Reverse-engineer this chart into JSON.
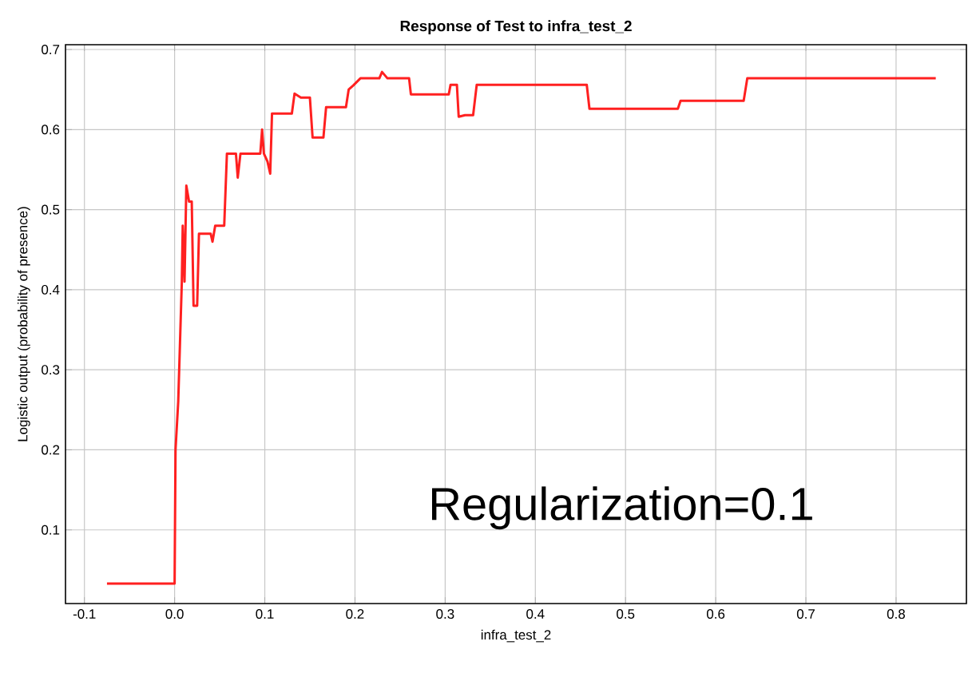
{
  "chart_data": {
    "type": "line",
    "title": "Response of Test to infra_test_2",
    "xlabel": "infra_test_2",
    "ylabel": "Logistic output (probability of presence)",
    "annotations": [
      "Regularization=0.1"
    ],
    "xlim": [
      -0.121,
      0.878
    ],
    "ylim": [
      0.008,
      0.706
    ],
    "xticks": [
      -0.1,
      {
        "value": 0,
        "label": "0.0"
      },
      0.1,
      0.2,
      0.3,
      0.4,
      0.5,
      0.6,
      0.7,
      0.8
    ],
    "yticks": [
      0.1,
      0.2,
      0.3,
      0.4,
      0.5,
      0.6,
      0.7
    ],
    "grid": true,
    "marker": "none",
    "line_style": "solid",
    "series": [
      {
        "color": "#ff2020",
        "x": [
          -0.075,
          0.0,
          0.001,
          0.004,
          0.008,
          0.009,
          0.011,
          0.013,
          0.016,
          0.019,
          0.021,
          0.025,
          0.027,
          0.04,
          0.042,
          0.045,
          0.055,
          0.058,
          0.068,
          0.07,
          0.073,
          0.095,
          0.097,
          0.099,
          0.103,
          0.106,
          0.108,
          0.13,
          0.133,
          0.14,
          0.15,
          0.153,
          0.165,
          0.168,
          0.19,
          0.193,
          0.198,
          0.206,
          0.227,
          0.23,
          0.236,
          0.26,
          0.262,
          0.304,
          0.306,
          0.313,
          0.315,
          0.322,
          0.331,
          0.335,
          0.457,
          0.46,
          0.558,
          0.561,
          0.631,
          0.635,
          0.844
        ],
        "values": [
          0.033,
          0.033,
          0.2,
          0.26,
          0.41,
          0.48,
          0.41,
          0.53,
          0.51,
          0.51,
          0.38,
          0.38,
          0.47,
          0.47,
          0.46,
          0.48,
          0.48,
          0.57,
          0.57,
          0.54,
          0.57,
          0.57,
          0.6,
          0.57,
          0.56,
          0.545,
          0.62,
          0.62,
          0.645,
          0.64,
          0.64,
          0.59,
          0.59,
          0.628,
          0.628,
          0.65,
          0.655,
          0.664,
          0.664,
          0.672,
          0.664,
          0.664,
          0.644,
          0.644,
          0.656,
          0.656,
          0.616,
          0.618,
          0.618,
          0.656,
          0.656,
          0.626,
          0.626,
          0.636,
          0.636,
          0.664,
          0.664
        ]
      }
    ]
  }
}
